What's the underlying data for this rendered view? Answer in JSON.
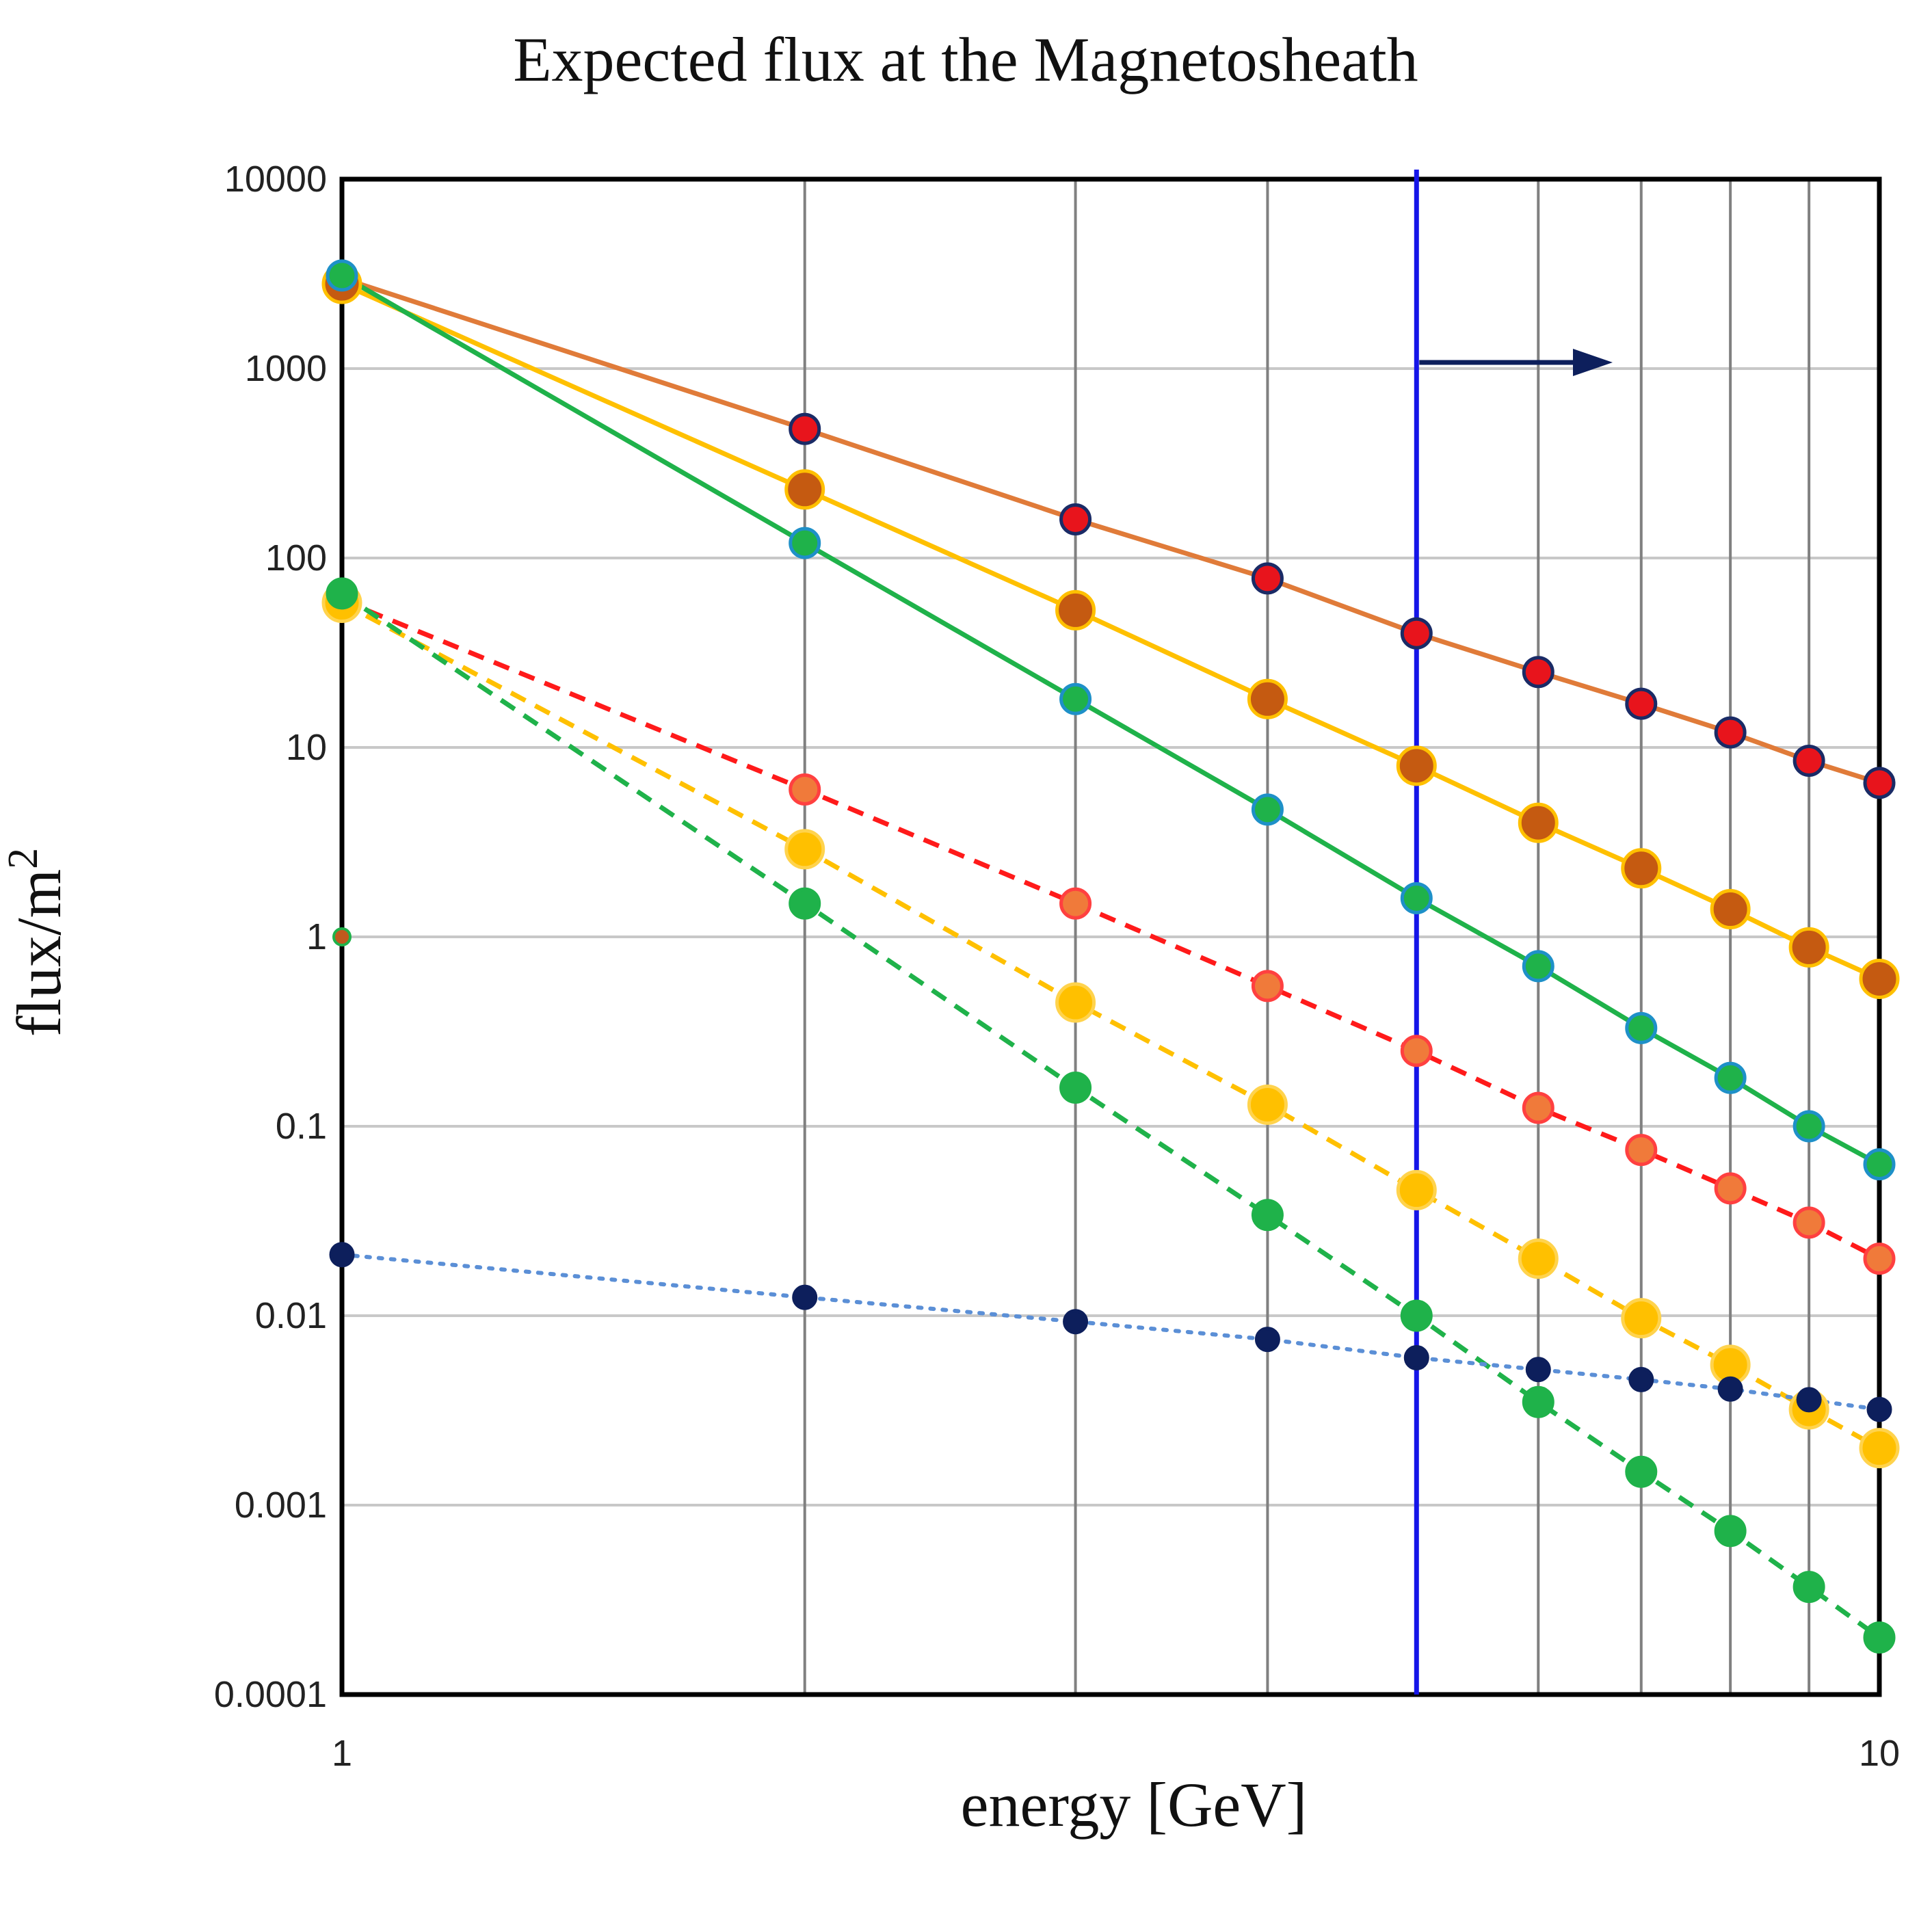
{
  "chart_data": {
    "type": "line",
    "title": "Expected flux at the Magnetosheath",
    "xlabel": "energy [GeV]",
    "ylabel_base": "flux/m",
    "ylabel_sup": "2",
    "xscale": "log",
    "yscale": "log",
    "xlim": [
      1,
      10
    ],
    "ylim": [
      0.0001,
      10000
    ],
    "x_tick_labels": [
      "1",
      "10"
    ],
    "x_tick_values": [
      1,
      10
    ],
    "y_tick_labels": [
      "10000",
      "1000",
      "100",
      "10",
      "1",
      "0.1",
      "0.01",
      "0.001",
      "0.0001"
    ],
    "y_tick_values": [
      10000,
      1000,
      100,
      10,
      1,
      0.1,
      0.01,
      0.001,
      0.0001
    ],
    "x_gridlines": [
      2,
      3,
      4,
      5,
      6,
      7,
      8,
      9
    ],
    "grid": true,
    "threshold": {
      "x": 5,
      "direction": "right",
      "color": "#1515e8",
      "arrow_color": "#0d1f5c"
    },
    "extra_points": [
      {
        "x": 1,
        "y": 1,
        "color": "#c0591e"
      }
    ],
    "series": [
      {
        "name": "red solid",
        "style": "solid",
        "line_color": "#e07b39",
        "marker_color": "#e8141c",
        "marker_edge": "#1a2b66",
        "marker_size": "medium",
        "x": [
          1,
          2,
          3,
          4,
          5,
          6,
          7,
          8,
          9,
          10
        ],
        "y": [
          3000,
          480,
          160,
          78,
          40,
          25,
          17,
          12,
          8.5,
          6.5
        ]
      },
      {
        "name": "orange solid",
        "style": "solid",
        "line_color": "#ffc000",
        "marker_color": "#c55a11",
        "marker_edge": "#ffc000",
        "marker_size": "large",
        "x": [
          1,
          2,
          3,
          4,
          5,
          6,
          7,
          8,
          9,
          10
        ],
        "y": [
          2800,
          230,
          53,
          18,
          8,
          4,
          2.3,
          1.4,
          0.88,
          0.6
        ]
      },
      {
        "name": "green solid",
        "style": "solid",
        "line_color": "#1fb24a",
        "marker_color": "#1fb24a",
        "marker_edge": "#1e90c8",
        "marker_size": "medium",
        "x": [
          1,
          2,
          3,
          4,
          5,
          6,
          7,
          8,
          9,
          10
        ],
        "y": [
          3100,
          120,
          18,
          4.7,
          1.6,
          0.7,
          0.33,
          0.18,
          0.1,
          0.063
        ]
      },
      {
        "name": "red dashed",
        "style": "dashed",
        "line_color": "#ff1a1a",
        "marker_color": "#f07a3a",
        "marker_edge": "#ff4040",
        "marker_size": "medium",
        "x": [
          1,
          2,
          3,
          4,
          5,
          6,
          7,
          8,
          9,
          10
        ],
        "y": [
          60,
          6,
          1.5,
          0.55,
          0.25,
          0.125,
          0.075,
          0.047,
          0.031,
          0.02
        ]
      },
      {
        "name": "orange dashed",
        "style": "dashed",
        "line_color": "#ffc000",
        "marker_color": "#ffc000",
        "marker_edge": "#ffd34d",
        "marker_size": "large",
        "x": [
          1,
          2,
          3,
          4,
          5,
          6,
          7,
          8,
          9,
          10
        ],
        "y": [
          58,
          2.9,
          0.45,
          0.13,
          0.046,
          0.02,
          0.0097,
          0.0055,
          0.0032,
          0.002
        ]
      },
      {
        "name": "green dashed",
        "style": "dashed",
        "line_color": "#1fb24a",
        "marker_color": "#1fb24a",
        "marker_edge": "#1fb24a",
        "marker_size": "medium",
        "x": [
          1,
          2,
          3,
          4,
          5,
          6,
          7,
          8,
          9,
          10
        ],
        "y": [
          65,
          1.5,
          0.16,
          0.034,
          0.01,
          0.0035,
          0.0015,
          0.00073,
          0.00037,
          0.0002
        ]
      },
      {
        "name": "navy dotted",
        "style": "dotted",
        "line_color": "#5b8fd6",
        "marker_color": "#0d1f5c",
        "marker_edge": "#0d1f5c",
        "marker_size": "small",
        "x": [
          1,
          2,
          3,
          4,
          5,
          6,
          7,
          8,
          9,
          10
        ],
        "y": [
          0.021,
          0.0125,
          0.0093,
          0.0075,
          0.006,
          0.0052,
          0.0046,
          0.0041,
          0.0036,
          0.0032
        ]
      }
    ]
  }
}
